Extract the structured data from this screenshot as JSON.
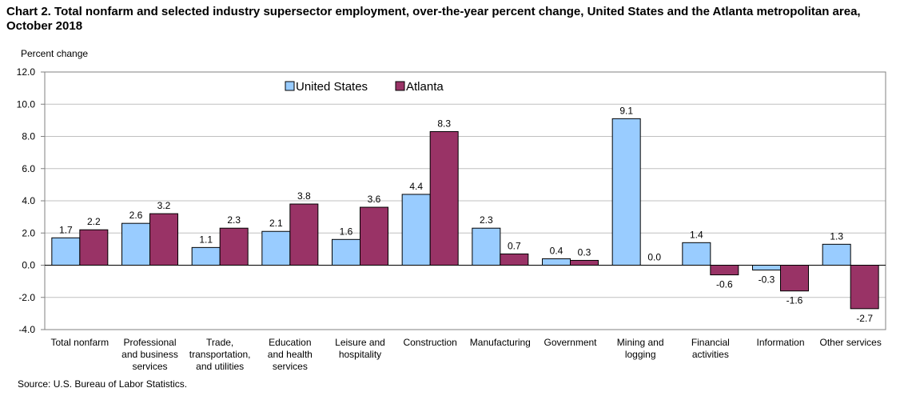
{
  "title": "Chart 2. Total nonfarm and selected industry  supersector  employment, over-the-year percent change, United States and the Atlanta metropolitan area, October 2018",
  "source": "Source: U.S. Bureau of Labor Statistics.",
  "colors": {
    "us": "#99CCFF",
    "atlanta": "#993366",
    "grid": "#c0c0c0",
    "axis": "#808080"
  },
  "chart_data": {
    "type": "bar",
    "ylabel": "Percent change",
    "ylim": [
      -4,
      12
    ],
    "yticks": [
      "-4.0",
      "-2.0",
      "0.0",
      "2.0",
      "4.0",
      "6.0",
      "8.0",
      "10.0",
      "12.0"
    ],
    "grid": true,
    "legend": "top-center",
    "categories": [
      [
        "Total nonfarm"
      ],
      [
        "Professional",
        "and business",
        "services"
      ],
      [
        "Trade,",
        "transportation,",
        "and utilities"
      ],
      [
        "Education",
        "and health",
        "services"
      ],
      [
        "Leisure and",
        "hospitality"
      ],
      [
        "Construction"
      ],
      [
        "Manufacturing"
      ],
      [
        "Government"
      ],
      [
        "Mining and",
        "logging"
      ],
      [
        "Financial",
        "activities"
      ],
      [
        "Information"
      ],
      [
        "Other services"
      ]
    ],
    "series": [
      {
        "name": "United States",
        "color": "#99CCFF",
        "values": [
          1.7,
          2.6,
          1.1,
          2.1,
          1.6,
          4.4,
          2.3,
          0.4,
          9.1,
          1.4,
          -0.3,
          1.3
        ],
        "labels": [
          "1.7",
          "2.6",
          "1.1",
          "2.1",
          "1.6",
          "4.4",
          "2.3",
          "0.4",
          "9.1",
          "1.4",
          "-0.3",
          "1.3"
        ]
      },
      {
        "name": "Atlanta",
        "color": "#993366",
        "values": [
          2.2,
          3.2,
          2.3,
          3.8,
          3.6,
          8.3,
          0.7,
          0.3,
          0.0,
          -0.6,
          -1.6,
          -2.7
        ],
        "labels": [
          "2.2",
          "3.2",
          "2.3",
          "3.8",
          "3.6",
          "8.3",
          "0.7",
          "0.3",
          "0.0",
          "-0.6",
          "-1.6",
          "-2.7"
        ]
      }
    ]
  }
}
